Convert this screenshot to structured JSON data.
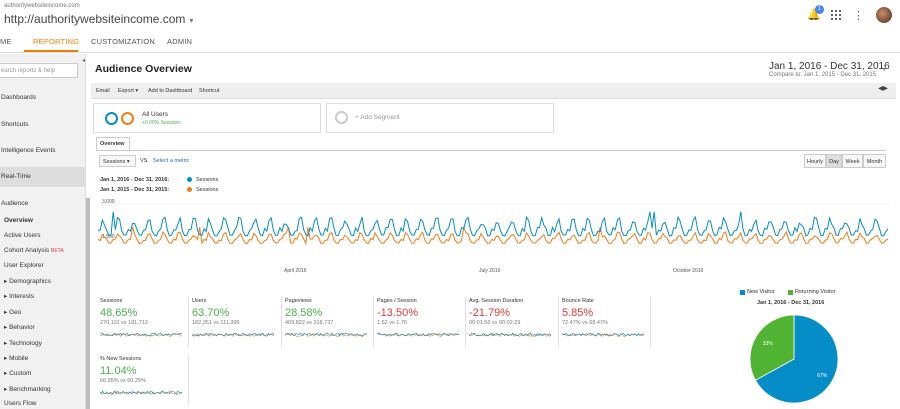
{
  "header": {
    "site_url_small": "authoritywebsiteincome.com",
    "site_url": "http://authoritywebsiteincome.com",
    "notification_count": "1",
    "icons": [
      "bell-icon",
      "apps-grid-icon",
      "more-vert-icon",
      "avatar"
    ]
  },
  "tabs": [
    {
      "label": "ME"
    },
    {
      "label": "REPORTING"
    },
    {
      "label": "CUSTOMIZATION"
    },
    {
      "label": "ADMIN"
    }
  ],
  "sidebar": {
    "search_placeholder": "earch reports & help",
    "items": {
      "dashboards": "Dashboards",
      "shortcuts": "Shortcuts",
      "intelligence": "Intelligence Events",
      "realtime": "Real-Time",
      "audience": "Audience"
    },
    "audience_children": {
      "overview": "Overview",
      "active_users": "Active Users",
      "cohort": "Cohort Analysis",
      "cohort_badge": "BETA",
      "user_explorer": "User Explorer",
      "demographics": "▸ Demographics",
      "interests": "▸ Interests",
      "geo": "▸ Geo",
      "behavior": "▸ Behavior",
      "technology": "▸ Technology",
      "mobile": "▸ Mobile",
      "custom": "▸ Custom",
      "benchmarking": "▸ Benchmarking",
      "users_flow": "Users Flow"
    }
  },
  "main": {
    "title": "Audience Overview",
    "date_range": "Jan 1, 2016 - Dec 31, 2016",
    "compare_range": "Compare to: Jan 1, 2015 - Dec 31, 2015",
    "actions": {
      "email": "Email",
      "export": "Export ▾",
      "add_dashboard": "Add to Dashboard",
      "shortcut": "Shortcut"
    },
    "segments": {
      "all_users": "All Users",
      "all_users_sub": "+0.00% Sessions",
      "add_segment": "+ Add Segment"
    },
    "overview_tab": "Overview",
    "metric_select": "Sessions ▾",
    "vs_label": "VS.",
    "select_metric": "Select a metric",
    "granularity": {
      "hourly": "Hourly",
      "day": "Day",
      "week": "Week",
      "month": "Month"
    },
    "legend": {
      "range_2016": "Jan 1, 2016 - Dec 31, 2016:",
      "range_2015": "Jan 1, 2015 - Dec 31, 2015:",
      "series": "Sessions"
    }
  },
  "colors": {
    "series_2016": "#058dc7",
    "series_2015": "#ed7e17",
    "positive": "#4caf50",
    "negative": "#e53935",
    "accent": "#f57c00",
    "link": "#1e6bb8"
  },
  "chart_data": {
    "type": "line",
    "yticks": [
      "3,000",
      "1,500"
    ],
    "ylim": [
      0,
      3000
    ],
    "xticks": [
      "April 2016",
      "July 2016",
      "October 2016"
    ],
    "series": [
      {
        "name": "Sessions",
        "period": "2016",
        "approx_range": [
          800,
          2600
        ]
      },
      {
        "name": "Sessions",
        "period": "2015",
        "approx_range": [
          600,
          1800
        ]
      }
    ]
  },
  "scorecards": [
    {
      "label": "Sessions",
      "value": "48.65%",
      "sub": "270,110 vs 181,712",
      "trend": "up"
    },
    {
      "label": "Users",
      "value": "63.70%",
      "sub": "182,351 vs 111,396",
      "trend": "up"
    },
    {
      "label": "Pageviews",
      "value": "28.58%",
      "sub": "409,822 vs 318,737",
      "trend": "up"
    },
    {
      "label": "Pages / Session",
      "value": "-13.50%",
      "sub": "1.52 vs 1.75",
      "trend": "down"
    },
    {
      "label": "Avg. Session Duration",
      "value": "-21.79%",
      "sub": "00:01:56 vs 00:02:29",
      "trend": "down"
    },
    {
      "label": "Bounce Rate",
      "value": "5.85%",
      "sub": "72.47% vs 68.47%",
      "trend": "down"
    },
    {
      "label": "% New Sessions",
      "value": "11.04%",
      "sub": "66.95% vs 60.29%",
      "trend": "up"
    }
  ],
  "pie_chart": {
    "type": "pie",
    "title": "Jan 1, 2016 - Dec 31, 2016",
    "legend": [
      {
        "label": "New Visitor",
        "color": "#058dc7"
      },
      {
        "label": "Returning Visitor",
        "color": "#50b432"
      }
    ],
    "slices": [
      {
        "label": "New Visitor",
        "value": 67,
        "text": "67%"
      },
      {
        "label": "Returning Visitor",
        "value": 33,
        "text": "33%"
      }
    ]
  }
}
